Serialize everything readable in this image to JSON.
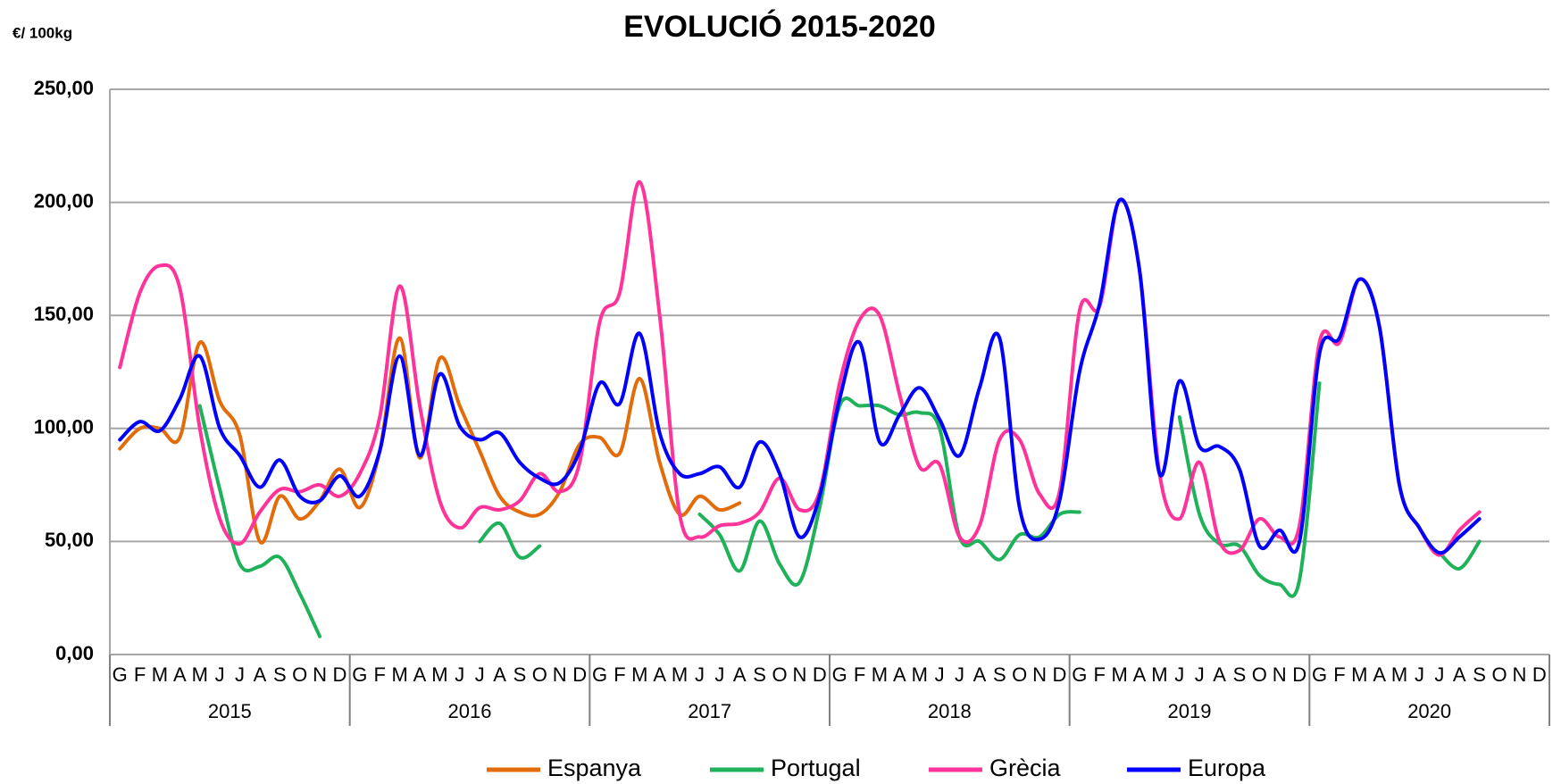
{
  "chart_data": {
    "type": "line",
    "title": "EVOLUCIÓ 2015-2020",
    "y_label": "€/ 100kg",
    "categories": [
      "G",
      "F",
      "M",
      "A",
      "M",
      "J",
      "J",
      "A",
      "S",
      "O",
      "N",
      "D",
      "G",
      "F",
      "M",
      "A",
      "M",
      "J",
      "J",
      "A",
      "S",
      "O",
      "N",
      "D",
      "G",
      "F",
      "M",
      "A",
      "M",
      "J",
      "J",
      "A",
      "S",
      "O",
      "N",
      "D",
      "G",
      "F",
      "M",
      "A",
      "M",
      "J",
      "J",
      "A",
      "S",
      "O",
      "N",
      "D",
      "G",
      "F",
      "M",
      "A",
      "M",
      "J",
      "J",
      "A",
      "S",
      "O",
      "N",
      "D",
      "G",
      "F",
      "M",
      "A",
      "M",
      "J",
      "J",
      "A",
      "S",
      "O",
      "N",
      "D"
    ],
    "groups": [
      "2015",
      "2016",
      "2017",
      "2018",
      "2019",
      "2020"
    ],
    "ylim": [
      0,
      250
    ],
    "yticks": [
      {
        "value": 0,
        "label": "0,00"
      },
      {
        "value": 50,
        "label": "50,00"
      },
      {
        "value": 100,
        "label": "100,00"
      },
      {
        "value": 150,
        "label": "150,00"
      },
      {
        "value": 200,
        "label": "200,00"
      },
      {
        "value": 250,
        "label": "250,00"
      }
    ],
    "grid": true,
    "smooth": true,
    "legend": "bottom",
    "series": [
      {
        "name": "Espanya",
        "color": "#e36c0a",
        "values": [
          91,
          100,
          100,
          96,
          138,
          112,
          97,
          50,
          70,
          60,
          68,
          82,
          65,
          90,
          140,
          87,
          131,
          110,
          90,
          70,
          63,
          62,
          72,
          93,
          96,
          89,
          122,
          85,
          62,
          70,
          64,
          67,
          null,
          null,
          null,
          null,
          null,
          null,
          null,
          null,
          null,
          null,
          null,
          null,
          null,
          null,
          null,
          null,
          null,
          null,
          null,
          null,
          null,
          null,
          null,
          null,
          null,
          null,
          null,
          null,
          null,
          null,
          null,
          null,
          null,
          null,
          null,
          null,
          null,
          null,
          null,
          null
        ]
      },
      {
        "name": "Portugal",
        "color": "#1fb25a",
        "values": [
          null,
          null,
          null,
          null,
          110,
          73,
          40,
          39,
          43,
          27,
          8,
          null,
          null,
          null,
          null,
          null,
          null,
          null,
          50,
          58,
          43,
          48,
          null,
          null,
          null,
          null,
          null,
          null,
          null,
          62,
          53,
          37,
          59,
          40,
          32,
          65,
          110,
          110,
          110,
          106,
          107,
          100,
          52,
          50,
          42,
          53,
          52,
          62,
          63,
          null,
          null,
          null,
          null,
          105,
          62,
          49,
          48,
          35,
          31,
          33,
          120,
          null,
          null,
          null,
          null,
          null,
          45,
          38,
          50,
          null,
          null,
          null
        ]
      },
      {
        "name": "Grècia",
        "color": "#ff3399",
        "values": [
          127,
          160,
          172,
          162,
          100,
          60,
          49,
          63,
          73,
          72,
          75,
          70,
          80,
          105,
          163,
          110,
          68,
          56,
          65,
          64,
          68,
          80,
          72,
          85,
          147,
          160,
          209,
          150,
          62,
          52,
          57,
          58,
          63,
          78,
          64,
          72,
          120,
          148,
          150,
          115,
          83,
          84,
          52,
          57,
          95,
          95,
          71,
          72,
          152,
          154,
          201,
          170,
          80,
          60,
          85,
          50,
          46,
          60,
          52,
          57,
          138,
          138,
          166,
          145,
          75,
          56,
          44,
          55,
          63,
          null,
          null,
          null
        ]
      },
      {
        "name": "Europa",
        "color": "#0000ff",
        "values": [
          95,
          103,
          99,
          113,
          132,
          100,
          88,
          74,
          86,
          70,
          68,
          79,
          70,
          90,
          132,
          88,
          124,
          101,
          95,
          98,
          85,
          78,
          76,
          90,
          120,
          111,
          142,
          98,
          80,
          80,
          83,
          74,
          94,
          80,
          52,
          70,
          113,
          138,
          94,
          106,
          118,
          104,
          88,
          118,
          140,
          65,
          51,
          68,
          125,
          155,
          201,
          170,
          80,
          121,
          92,
          92,
          82,
          48,
          55,
          50,
          133,
          140,
          166,
          145,
          75,
          56,
          45,
          52,
          60,
          null,
          null,
          null
        ]
      }
    ]
  }
}
